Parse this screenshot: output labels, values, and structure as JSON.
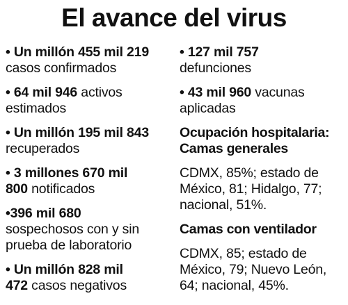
{
  "title": "El avance del virus",
  "left_items": [
    {
      "bold": "• Un millón 455 mil 219",
      "text": "\ncasos confirmados"
    },
    {
      "bold": "• 64 mil 946",
      "text": " activos\nestimados"
    },
    {
      "bold": "• Un millón 195 mil 843",
      "text": "\nrecuperados"
    },
    {
      "bold": "• 3 millones 670 mil\n800",
      "text": " notificados"
    },
    {
      "bold": "•396 mil 680",
      "text": "\nsospechosos con y sin\nprueba de laboratorio"
    },
    {
      "bold": "• Un millón 828 mil\n472",
      "text": " casos negativos"
    }
  ],
  "right_items": [
    {
      "bold": "• 127 mil 757",
      "text": "\ndefunciones"
    },
    {
      "bold": "• 43 mil 960",
      "text": " vacunas\naplicadas"
    }
  ],
  "hospital": {
    "heading": "Ocupación hospitalaria:\nCamas generales",
    "general_text": "CDMX, 85%; estado de\nMéxico, 81; Hidalgo, 77;\nnacional, 51%.",
    "vent_heading": "Camas con ventilador",
    "vent_text": "CDMX, 85; estado de\nMéxico, 79; Nuevo León,\n64; nacional, 45%."
  }
}
